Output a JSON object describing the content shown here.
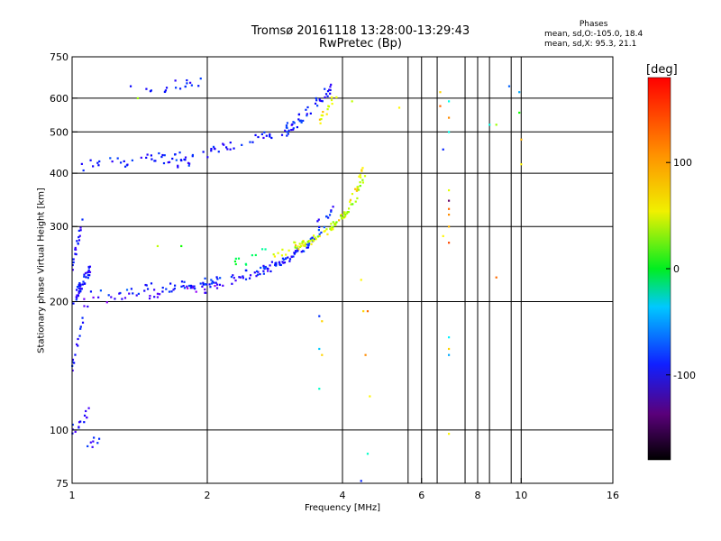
{
  "title_line1": "Tromsø 20161118 13:28:00-13:29:43",
  "title_line2": "RwPretec (Bp)",
  "phases": {
    "header": "Phases",
    "line_o": "mean, sd,O:-105.0, 18.4",
    "line_x": "mean, sd,X:  95.3, 21.1"
  },
  "colorbar": {
    "unit": "[deg]",
    "min": -180,
    "max": 180,
    "ticks": [
      {
        "value": 100,
        "label": "100"
      },
      {
        "value": 0,
        "label": "0"
      },
      {
        "value": -100,
        "label": "-100"
      }
    ]
  },
  "chart_data": {
    "type": "scatter",
    "title": "Tromsø 20161118 13:28:00-13:29:43",
    "subtitle": "RwPretec (Bp)",
    "xlabel": "Frequency [MHz]",
    "ylabel": "Stationary phase Virtual Height [km]",
    "x_scale": "log",
    "y_scale": "log",
    "xlim": [
      1,
      16
    ],
    "ylim": [
      75,
      750
    ],
    "x_ticks": [
      1,
      2,
      4,
      6,
      8,
      10,
      16
    ],
    "x_tick_labels": [
      "1",
      "2",
      "4",
      "6",
      "8",
      "10",
      "16"
    ],
    "y_ticks": [
      75,
      100,
      200,
      300,
      400,
      500,
      600,
      750
    ],
    "y_tick_labels": [
      "75",
      "100",
      "200",
      "300",
      "400",
      "500",
      "600",
      "750"
    ],
    "x_grid": [
      1,
      2,
      4,
      6,
      8,
      10,
      16,
      5.6,
      6.5,
      7.5,
      8.5,
      9.5
    ],
    "y_grid": [
      100,
      200,
      300,
      400,
      500,
      600
    ],
    "grid": true,
    "color_by": "phase [deg]",
    "traces": [
      {
        "f0": 1.0,
        "f1": 3.6,
        "hmin": 203,
        "asym": 3.9,
        "k": 0.24,
        "phase": -110,
        "n": 70,
        "jitter": 0.018
      },
      {
        "f0": 1.0,
        "f1": 3.8,
        "hmin": 209,
        "asym": 4.1,
        "k": 0.24,
        "phase": -100,
        "n": 80,
        "jitter": 0.02
      },
      {
        "f0": 2.8,
        "f1": 4.45,
        "hmin": 233,
        "asym": 4.6,
        "k": 0.22,
        "phase": 110,
        "n": 60,
        "jitter": 0.018
      },
      {
        "f0": 3.1,
        "f1": 4.48,
        "hmin": 240,
        "asym": 4.65,
        "k": 0.2,
        "phase": 80,
        "n": 40,
        "jitter": 0.02
      }
    ],
    "clusters": [
      {
        "x0": 1.0,
        "x1": 1.1,
        "y0": 200,
        "y1": 240,
        "phase": -110,
        "n": 45
      },
      {
        "x0": 1.0,
        "x1": 1.06,
        "y0": 240,
        "y1": 320,
        "phase": -110,
        "n": 20
      },
      {
        "x0": 1.0,
        "x1": 1.06,
        "y0": 140,
        "y1": 185,
        "phase": -110,
        "n": 14
      },
      {
        "x0": 1.0,
        "x1": 1.1,
        "y0": 100,
        "y1": 112,
        "phase": -110,
        "n": 14
      },
      {
        "x0": 1.08,
        "x1": 1.15,
        "y0": 90,
        "y1": 97,
        "phase": -110,
        "n": 7
      },
      {
        "x0": 1.05,
        "x1": 1.8,
        "y0": 415,
        "y1": 440,
        "phase": -105,
        "n": 38
      },
      {
        "x0": 1.7,
        "x1": 3.2,
        "y0": 420,
        "y1": 520,
        "phase": -105,
        "n": 45
      },
      {
        "x0": 3.0,
        "x1": 3.8,
        "y0": 500,
        "y1": 640,
        "phase": -105,
        "n": 40
      },
      {
        "x0": 1.45,
        "x1": 1.95,
        "y0": 630,
        "y1": 655,
        "phase": -110,
        "n": 18
      },
      {
        "x0": 2.3,
        "x1": 2.7,
        "y0": 245,
        "y1": 262,
        "phase": 10,
        "n": 10
      },
      {
        "x0": 3.5,
        "x1": 3.9,
        "y0": 520,
        "y1": 620,
        "phase": 110,
        "n": 14
      },
      {
        "x0": 1.05,
        "x1": 2.2,
        "y0": 200,
        "y1": 215,
        "phase": -135,
        "n": 30
      }
    ],
    "points": [
      {
        "x": 1.35,
        "y": 640,
        "phase": -110
      },
      {
        "x": 1.4,
        "y": 600,
        "phase": 80
      },
      {
        "x": 1.55,
        "y": 270,
        "phase": 90
      },
      {
        "x": 1.75,
        "y": 270,
        "phase": 40
      },
      {
        "x": 3.55,
        "y": 185,
        "phase": -95
      },
      {
        "x": 3.6,
        "y": 180,
        "phase": 120
      },
      {
        "x": 3.55,
        "y": 155,
        "phase": -50
      },
      {
        "x": 3.6,
        "y": 150,
        "phase": 120
      },
      {
        "x": 3.55,
        "y": 125,
        "phase": -20
      },
      {
        "x": 4.45,
        "y": 190,
        "phase": 120
      },
      {
        "x": 4.55,
        "y": 190,
        "phase": 150
      },
      {
        "x": 4.5,
        "y": 150,
        "phase": 140
      },
      {
        "x": 4.6,
        "y": 120,
        "phase": 110
      },
      {
        "x": 4.55,
        "y": 88,
        "phase": -20
      },
      {
        "x": 4.4,
        "y": 76,
        "phase": -100
      },
      {
        "x": 4.4,
        "y": 225,
        "phase": 110
      },
      {
        "x": 6.6,
        "y": 620,
        "phase": 120
      },
      {
        "x": 6.6,
        "y": 575,
        "phase": 150
      },
      {
        "x": 6.7,
        "y": 455,
        "phase": -100
      },
      {
        "x": 6.9,
        "y": 590,
        "phase": -30
      },
      {
        "x": 6.9,
        "y": 540,
        "phase": 140
      },
      {
        "x": 6.9,
        "y": 500,
        "phase": -30
      },
      {
        "x": 6.9,
        "y": 365,
        "phase": 100
      },
      {
        "x": 6.9,
        "y": 345,
        "phase": -180
      },
      {
        "x": 6.9,
        "y": 330,
        "phase": 150
      },
      {
        "x": 6.9,
        "y": 320,
        "phase": 140
      },
      {
        "x": 6.9,
        "y": 300,
        "phase": 130
      },
      {
        "x": 6.7,
        "y": 285,
        "phase": 110
      },
      {
        "x": 6.9,
        "y": 275,
        "phase": 160
      },
      {
        "x": 6.9,
        "y": 165,
        "phase": -40
      },
      {
        "x": 6.9,
        "y": 155,
        "phase": 120
      },
      {
        "x": 6.9,
        "y": 150,
        "phase": -60
      },
      {
        "x": 6.9,
        "y": 98,
        "phase": 110
      },
      {
        "x": 8.5,
        "y": 520,
        "phase": -30
      },
      {
        "x": 8.8,
        "y": 520,
        "phase": 80
      },
      {
        "x": 8.8,
        "y": 228,
        "phase": 150
      },
      {
        "x": 9.4,
        "y": 640,
        "phase": -80
      },
      {
        "x": 9.9,
        "y": 620,
        "phase": -60
      },
      {
        "x": 9.9,
        "y": 555,
        "phase": 40
      },
      {
        "x": 10.0,
        "y": 480,
        "phase": 130
      },
      {
        "x": 10.0,
        "y": 420,
        "phase": 110
      },
      {
        "x": 5.35,
        "y": 570,
        "phase": 110
      },
      {
        "x": 4.2,
        "y": 590,
        "phase": 90
      }
    ]
  }
}
